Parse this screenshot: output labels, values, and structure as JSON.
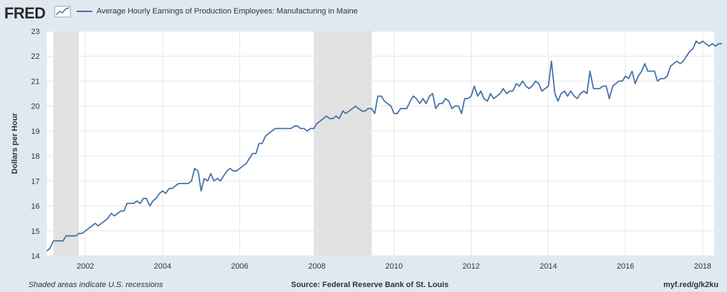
{
  "header": {
    "logo_text": "FRED",
    "legend_label": "Average Hourly Earnings of Production Employees: Manufacturing in Maine"
  },
  "footer": {
    "note": "Shaded areas indicate U.S. recessions",
    "source": "Source: Federal Reserve Bank of St. Louis",
    "short_url": "myf.red/g/k2ku"
  },
  "colors": {
    "background": "#e1e9f0",
    "plot_bg": "#ffffff",
    "series": "#4572a7",
    "recession": "#e1e1e1",
    "grid": "#e6e6e6"
  },
  "chart_data": {
    "type": "line",
    "ylabel": "Dollars per Hour",
    "xlim": [
      2001.0,
      2018.3
    ],
    "ylim": [
      14,
      23
    ],
    "yticks": [
      14,
      15,
      16,
      17,
      18,
      19,
      20,
      21,
      22,
      23
    ],
    "xticks": [
      {
        "value": 2002,
        "label": "2002"
      },
      {
        "value": 2004,
        "label": "2004"
      },
      {
        "value": 2006,
        "label": "2006"
      },
      {
        "value": 2008,
        "label": "2008"
      },
      {
        "value": 2010,
        "label": "2010"
      },
      {
        "value": 2012,
        "label": "2012"
      },
      {
        "value": 2014,
        "label": "2014"
      },
      {
        "value": 2016,
        "label": "2016"
      },
      {
        "value": 2018,
        "label": "2018"
      }
    ],
    "grid": true,
    "recessions": [
      [
        2001.17,
        2001.83
      ],
      [
        2007.92,
        2009.42
      ]
    ],
    "series": [
      {
        "points": [
          [
            2001.0,
            14.2
          ],
          [
            2001.08,
            14.3
          ],
          [
            2001.17,
            14.6
          ],
          [
            2001.33,
            14.6
          ],
          [
            2001.42,
            14.6
          ],
          [
            2001.5,
            14.8
          ],
          [
            2001.67,
            14.8
          ],
          [
            2001.75,
            14.8
          ],
          [
            2001.83,
            14.9
          ],
          [
            2001.92,
            14.9
          ],
          [
            2002.0,
            15.0
          ],
          [
            2002.17,
            15.2
          ],
          [
            2002.25,
            15.3
          ],
          [
            2002.33,
            15.2
          ],
          [
            2002.5,
            15.4
          ],
          [
            2002.58,
            15.5
          ],
          [
            2002.67,
            15.7
          ],
          [
            2002.75,
            15.6
          ],
          [
            2002.92,
            15.8
          ],
          [
            2003.0,
            15.8
          ],
          [
            2003.08,
            16.1
          ],
          [
            2003.25,
            16.1
          ],
          [
            2003.33,
            16.2
          ],
          [
            2003.42,
            16.1
          ],
          [
            2003.5,
            16.3
          ],
          [
            2003.58,
            16.3
          ],
          [
            2003.67,
            16.0
          ],
          [
            2003.75,
            16.2
          ],
          [
            2003.83,
            16.3
          ],
          [
            2003.92,
            16.5
          ],
          [
            2004.0,
            16.6
          ],
          [
            2004.08,
            16.5
          ],
          [
            2004.17,
            16.7
          ],
          [
            2004.25,
            16.7
          ],
          [
            2004.33,
            16.8
          ],
          [
            2004.42,
            16.9
          ],
          [
            2004.58,
            16.9
          ],
          [
            2004.67,
            16.9
          ],
          [
            2004.75,
            17.0
          ],
          [
            2004.83,
            17.5
          ],
          [
            2004.92,
            17.4
          ],
          [
            2005.0,
            16.6
          ],
          [
            2005.08,
            17.1
          ],
          [
            2005.17,
            17.0
          ],
          [
            2005.25,
            17.3
          ],
          [
            2005.33,
            17.0
          ],
          [
            2005.42,
            17.1
          ],
          [
            2005.5,
            17.0
          ],
          [
            2005.58,
            17.2
          ],
          [
            2005.67,
            17.4
          ],
          [
            2005.75,
            17.5
          ],
          [
            2005.83,
            17.4
          ],
          [
            2005.92,
            17.4
          ],
          [
            2006.0,
            17.5
          ],
          [
            2006.17,
            17.7
          ],
          [
            2006.25,
            17.9
          ],
          [
            2006.33,
            18.1
          ],
          [
            2006.42,
            18.1
          ],
          [
            2006.5,
            18.5
          ],
          [
            2006.58,
            18.5
          ],
          [
            2006.67,
            18.8
          ],
          [
            2006.75,
            18.9
          ],
          [
            2006.83,
            19.0
          ],
          [
            2006.92,
            19.1
          ],
          [
            2007.0,
            19.1
          ],
          [
            2007.17,
            19.1
          ],
          [
            2007.33,
            19.1
          ],
          [
            2007.42,
            19.2
          ],
          [
            2007.5,
            19.2
          ],
          [
            2007.58,
            19.1
          ],
          [
            2007.67,
            19.1
          ],
          [
            2007.75,
            19.0
          ],
          [
            2007.83,
            19.1
          ],
          [
            2007.92,
            19.1
          ],
          [
            2008.0,
            19.3
          ],
          [
            2008.17,
            19.5
          ],
          [
            2008.25,
            19.6
          ],
          [
            2008.33,
            19.5
          ],
          [
            2008.42,
            19.5
          ],
          [
            2008.5,
            19.6
          ],
          [
            2008.58,
            19.5
          ],
          [
            2008.67,
            19.8
          ],
          [
            2008.75,
            19.7
          ],
          [
            2008.92,
            19.9
          ],
          [
            2009.0,
            20.0
          ],
          [
            2009.08,
            19.9
          ],
          [
            2009.17,
            19.8
          ],
          [
            2009.25,
            19.8
          ],
          [
            2009.33,
            19.9
          ],
          [
            2009.42,
            19.9
          ],
          [
            2009.5,
            19.7
          ],
          [
            2009.58,
            20.4
          ],
          [
            2009.67,
            20.4
          ],
          [
            2009.75,
            20.2
          ],
          [
            2009.83,
            20.1
          ],
          [
            2009.92,
            20.0
          ],
          [
            2010.0,
            19.7
          ],
          [
            2010.08,
            19.7
          ],
          [
            2010.17,
            19.9
          ],
          [
            2010.33,
            19.9
          ],
          [
            2010.42,
            20.2
          ],
          [
            2010.5,
            20.4
          ],
          [
            2010.58,
            20.3
          ],
          [
            2010.67,
            20.1
          ],
          [
            2010.75,
            20.3
          ],
          [
            2010.83,
            20.1
          ],
          [
            2010.92,
            20.4
          ],
          [
            2011.0,
            20.5
          ],
          [
            2011.08,
            19.9
          ],
          [
            2011.17,
            20.1
          ],
          [
            2011.25,
            20.1
          ],
          [
            2011.33,
            20.3
          ],
          [
            2011.42,
            20.2
          ],
          [
            2011.5,
            19.9
          ],
          [
            2011.58,
            20.0
          ],
          [
            2011.67,
            20.0
          ],
          [
            2011.75,
            19.7
          ],
          [
            2011.83,
            20.3
          ],
          [
            2011.92,
            20.3
          ],
          [
            2012.0,
            20.4
          ],
          [
            2012.08,
            20.8
          ],
          [
            2012.17,
            20.4
          ],
          [
            2012.25,
            20.6
          ],
          [
            2012.33,
            20.3
          ],
          [
            2012.42,
            20.2
          ],
          [
            2012.5,
            20.5
          ],
          [
            2012.58,
            20.3
          ],
          [
            2012.67,
            20.4
          ],
          [
            2012.75,
            20.5
          ],
          [
            2012.83,
            20.7
          ],
          [
            2012.92,
            20.5
          ],
          [
            2013.0,
            20.6
          ],
          [
            2013.08,
            20.6
          ],
          [
            2013.17,
            20.9
          ],
          [
            2013.25,
            20.8
          ],
          [
            2013.33,
            21.0
          ],
          [
            2013.42,
            20.8
          ],
          [
            2013.5,
            20.7
          ],
          [
            2013.58,
            20.8
          ],
          [
            2013.67,
            21.0
          ],
          [
            2013.75,
            20.9
          ],
          [
            2013.83,
            20.6
          ],
          [
            2013.92,
            20.7
          ],
          [
            2014.0,
            20.8
          ],
          [
            2014.08,
            21.8
          ],
          [
            2014.17,
            20.5
          ],
          [
            2014.25,
            20.2
          ],
          [
            2014.33,
            20.5
          ],
          [
            2014.42,
            20.6
          ],
          [
            2014.5,
            20.4
          ],
          [
            2014.58,
            20.6
          ],
          [
            2014.67,
            20.4
          ],
          [
            2014.75,
            20.3
          ],
          [
            2014.83,
            20.5
          ],
          [
            2014.92,
            20.6
          ],
          [
            2015.0,
            20.5
          ],
          [
            2015.08,
            21.4
          ],
          [
            2015.17,
            20.7
          ],
          [
            2015.33,
            20.7
          ],
          [
            2015.42,
            20.8
          ],
          [
            2015.5,
            20.8
          ],
          [
            2015.58,
            20.3
          ],
          [
            2015.67,
            20.8
          ],
          [
            2015.75,
            20.9
          ],
          [
            2015.83,
            21.0
          ],
          [
            2015.92,
            21.0
          ],
          [
            2016.0,
            21.2
          ],
          [
            2016.08,
            21.1
          ],
          [
            2016.17,
            21.4
          ],
          [
            2016.25,
            20.9
          ],
          [
            2016.33,
            21.2
          ],
          [
            2016.42,
            21.4
          ],
          [
            2016.5,
            21.7
          ],
          [
            2016.58,
            21.4
          ],
          [
            2016.67,
            21.4
          ],
          [
            2016.75,
            21.4
          ],
          [
            2016.83,
            21.0
          ],
          [
            2016.92,
            21.1
          ],
          [
            2017.0,
            21.1
          ],
          [
            2017.08,
            21.2
          ],
          [
            2017.17,
            21.6
          ],
          [
            2017.25,
            21.7
          ],
          [
            2017.33,
            21.8
          ],
          [
            2017.42,
            21.7
          ],
          [
            2017.5,
            21.8
          ],
          [
            2017.58,
            22.0
          ],
          [
            2017.67,
            22.2
          ],
          [
            2017.75,
            22.3
          ],
          [
            2017.83,
            22.6
          ],
          [
            2017.92,
            22.5
          ],
          [
            2018.0,
            22.6
          ],
          [
            2018.08,
            22.5
          ],
          [
            2018.17,
            22.4
          ],
          [
            2018.25,
            22.5
          ],
          [
            2018.33,
            22.4
          ],
          [
            2018.42,
            22.5
          ],
          [
            2018.5,
            22.5
          ]
        ]
      }
    ]
  }
}
